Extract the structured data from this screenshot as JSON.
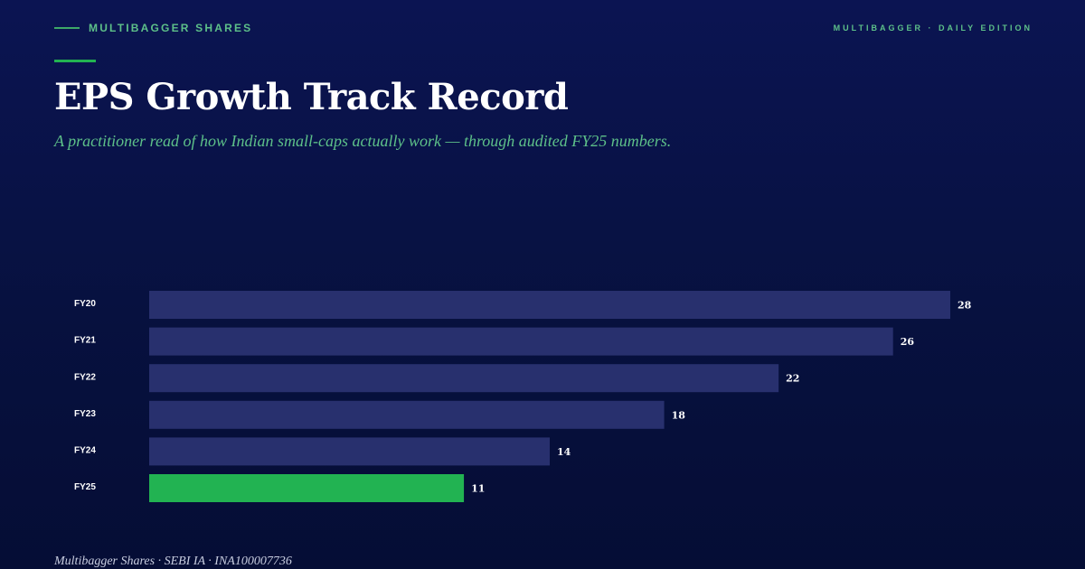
{
  "header": {
    "brand": "MULTIBAGGER SHARES",
    "edition": "MULTIBAGGER · DAILY EDITION"
  },
  "title": "EPS Growth Track Record",
  "subtitle": "A practitioner read of how Indian small-caps actually work — through audited FY25 numbers.",
  "footer": "Multibagger Shares · SEBI IA · INA100007736",
  "colors": {
    "bar": "#28306e",
    "highlight": "#22b352",
    "accent": "#5dc089"
  },
  "chart_data": {
    "type": "bar",
    "orientation": "horizontal",
    "categories": [
      "FY20",
      "FY21",
      "FY22",
      "FY23",
      "FY24",
      "FY25"
    ],
    "values": [
      28,
      26,
      22,
      18,
      14,
      11
    ],
    "highlight": "FY25",
    "title": "",
    "xlabel": "",
    "ylabel": "",
    "xlim": [
      0,
      28
    ],
    "grid": false,
    "legend": "none"
  }
}
